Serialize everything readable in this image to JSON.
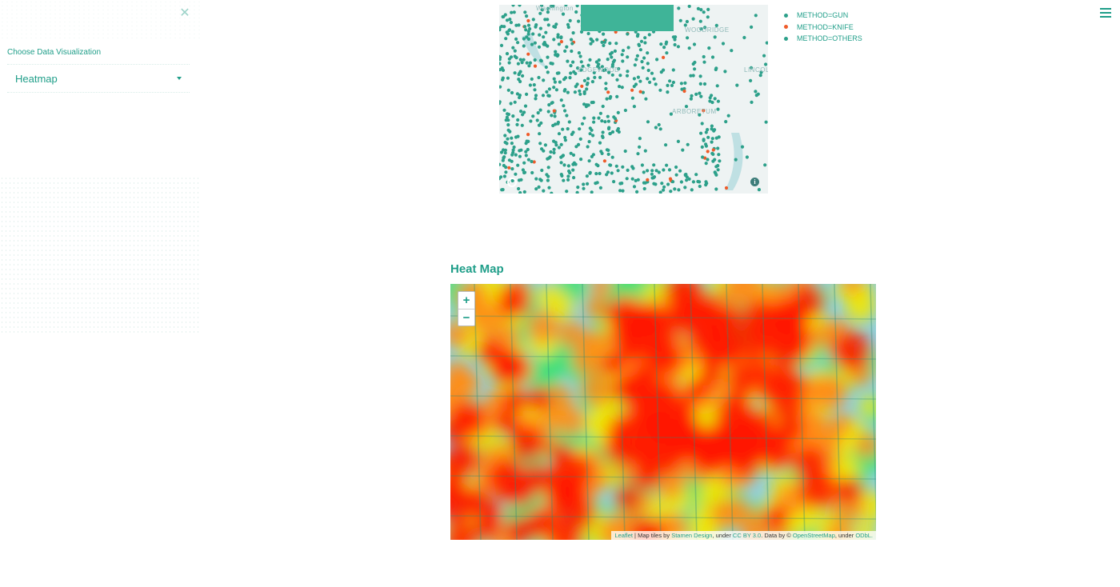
{
  "sidebar": {
    "close_glyph": "✕",
    "label": "Choose Data Visualization",
    "select_value": "Heatmap"
  },
  "scatter_map": {
    "labels": [
      "Washington",
      "WOODRIDGE",
      "EDGEWOOD",
      "ARBORETUM",
      "LINCOLN"
    ],
    "info_glyph": "i"
  },
  "legend": {
    "items": [
      {
        "label": "METHOD=GUN",
        "color": "#2ca08a"
      },
      {
        "label": "METHOD=KNIFE",
        "color": "#ef5b2a"
      },
      {
        "label": "METHOD=OTHERS",
        "color": "#2ca08a"
      }
    ]
  },
  "heatmap": {
    "title": "Heat Map",
    "zoom_in": "+",
    "zoom_out": "−",
    "attribution": {
      "leaflet": "Leaflet",
      "sep1": " | Map tiles by ",
      "stamen": "Stamen Design",
      "sep2": ", under ",
      "ccby": "CC BY 3.0",
      "sep3": ". Data by © ",
      "osm": "OpenStreetMap",
      "sep4": ", under ",
      "odbl": "ODbL."
    }
  },
  "colors": {
    "accent": "#1f9e89",
    "gun": "#2ca08a",
    "knife": "#ef5b2a",
    "heat_hot": "#ff1a00",
    "heat_mid": "#ff8c1a",
    "heat_warm": "#f2e600",
    "heat_cool": "#3ce070"
  }
}
